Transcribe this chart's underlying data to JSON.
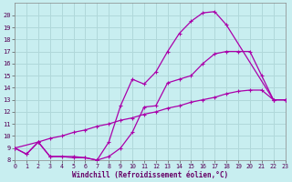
{
  "xlabel": "Windchill (Refroidissement éolien,°C)",
  "xlim": [
    0,
    23
  ],
  "ylim": [
    8,
    21
  ],
  "yticks": [
    8,
    9,
    10,
    11,
    12,
    13,
    14,
    15,
    16,
    17,
    18,
    19,
    20
  ],
  "xticks": [
    0,
    1,
    2,
    3,
    4,
    5,
    6,
    7,
    8,
    9,
    10,
    11,
    12,
    13,
    14,
    15,
    16,
    17,
    18,
    19,
    20,
    21,
    22,
    23
  ],
  "background_color": "#c8eef0",
  "grid_color": "#b0d8da",
  "line_color": "#aa00aa",
  "line1_x": [
    0,
    1,
    2,
    3,
    4,
    5,
    6,
    7,
    8,
    9,
    10,
    11,
    12,
    13,
    14,
    15,
    16,
    17,
    18,
    19,
    20,
    21,
    22,
    23
  ],
  "line1_y": [
    9.0,
    8.5,
    9.5,
    8.3,
    8.3,
    8.2,
    8.2,
    8.0,
    8.3,
    9.0,
    10.3,
    12.4,
    12.5,
    14.4,
    14.7,
    15.0,
    16.0,
    16.8,
    17.0,
    17.0,
    17.0,
    15.0,
    13.0,
    13.0
  ],
  "line2_x": [
    0,
    1,
    2,
    3,
    5,
    6,
    7,
    8,
    9,
    10,
    11,
    12,
    13,
    14,
    15,
    16,
    17,
    18,
    22,
    23
  ],
  "line2_y": [
    9.0,
    8.5,
    9.5,
    8.3,
    8.3,
    8.2,
    8.0,
    9.5,
    12.5,
    14.7,
    14.3,
    15.3,
    17.0,
    18.5,
    19.5,
    20.2,
    20.3,
    19.2,
    13.0,
    13.0
  ],
  "line3_x": [
    0,
    2,
    3,
    4,
    5,
    6,
    7,
    8,
    9,
    10,
    11,
    12,
    13,
    14,
    15,
    16,
    17,
    18,
    19,
    20,
    21,
    22,
    23
  ],
  "line3_y": [
    9.0,
    9.5,
    9.8,
    10.0,
    10.3,
    10.5,
    10.8,
    11.0,
    11.3,
    11.5,
    11.8,
    12.0,
    12.3,
    12.5,
    12.8,
    13.0,
    13.2,
    13.5,
    13.7,
    13.8,
    13.8,
    13.0,
    13.0
  ]
}
